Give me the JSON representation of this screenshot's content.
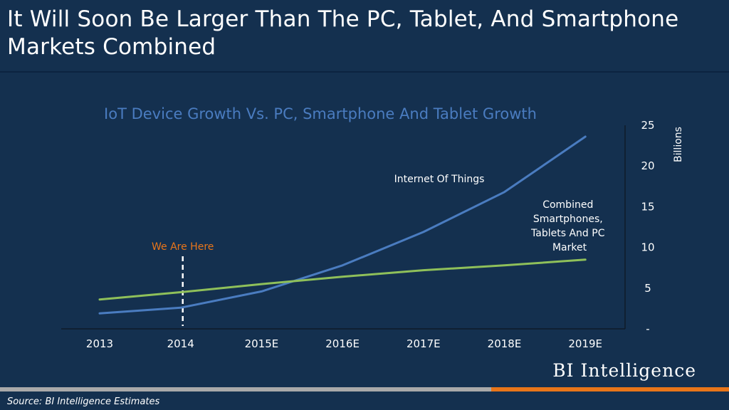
{
  "headline": "It Will Soon Be Larger Than The  PC, Tablet, And Smartphone Markets Combined",
  "brand": "BI Intelligence",
  "source": "Source: BI Intelligence Estimates",
  "colors": {
    "background": "#14304f",
    "iot_line": "#4a7cc0",
    "combined_line": "#8fc05a",
    "annotation": "#e8751a",
    "subtitle": "#4a7cc0",
    "accent_bar": "#e8751a"
  },
  "chart_data": {
    "type": "line",
    "title": "IoT Device Growth Vs. PC, Smartphone And Tablet Growth",
    "ylabel": "Billions",
    "xlabel": "",
    "categories": [
      "2013",
      "2014",
      "2015E",
      "2016E",
      "2017E",
      "2018E",
      "2019E"
    ],
    "y_ticks": [
      "25",
      "20",
      "15",
      "10",
      "5",
      "-"
    ],
    "ylim": [
      0,
      25
    ],
    "y_axis_side": "right",
    "grid": false,
    "series": [
      {
        "name": "Internet Of Things",
        "label": "Internet Of Things",
        "values": [
          1.9,
          2.6,
          4.6,
          7.8,
          11.9,
          16.8,
          23.6
        ]
      },
      {
        "name": "Combined Smartphones, Tablets And PC Market",
        "label_lines": [
          "Combined",
          "Smartphones,",
          "Tablets And PC",
          "Market"
        ],
        "values": [
          3.6,
          4.5,
          5.5,
          6.4,
          7.2,
          7.8,
          8.5
        ]
      }
    ],
    "annotation": {
      "text": "We Are Here",
      "category": "2014"
    }
  }
}
